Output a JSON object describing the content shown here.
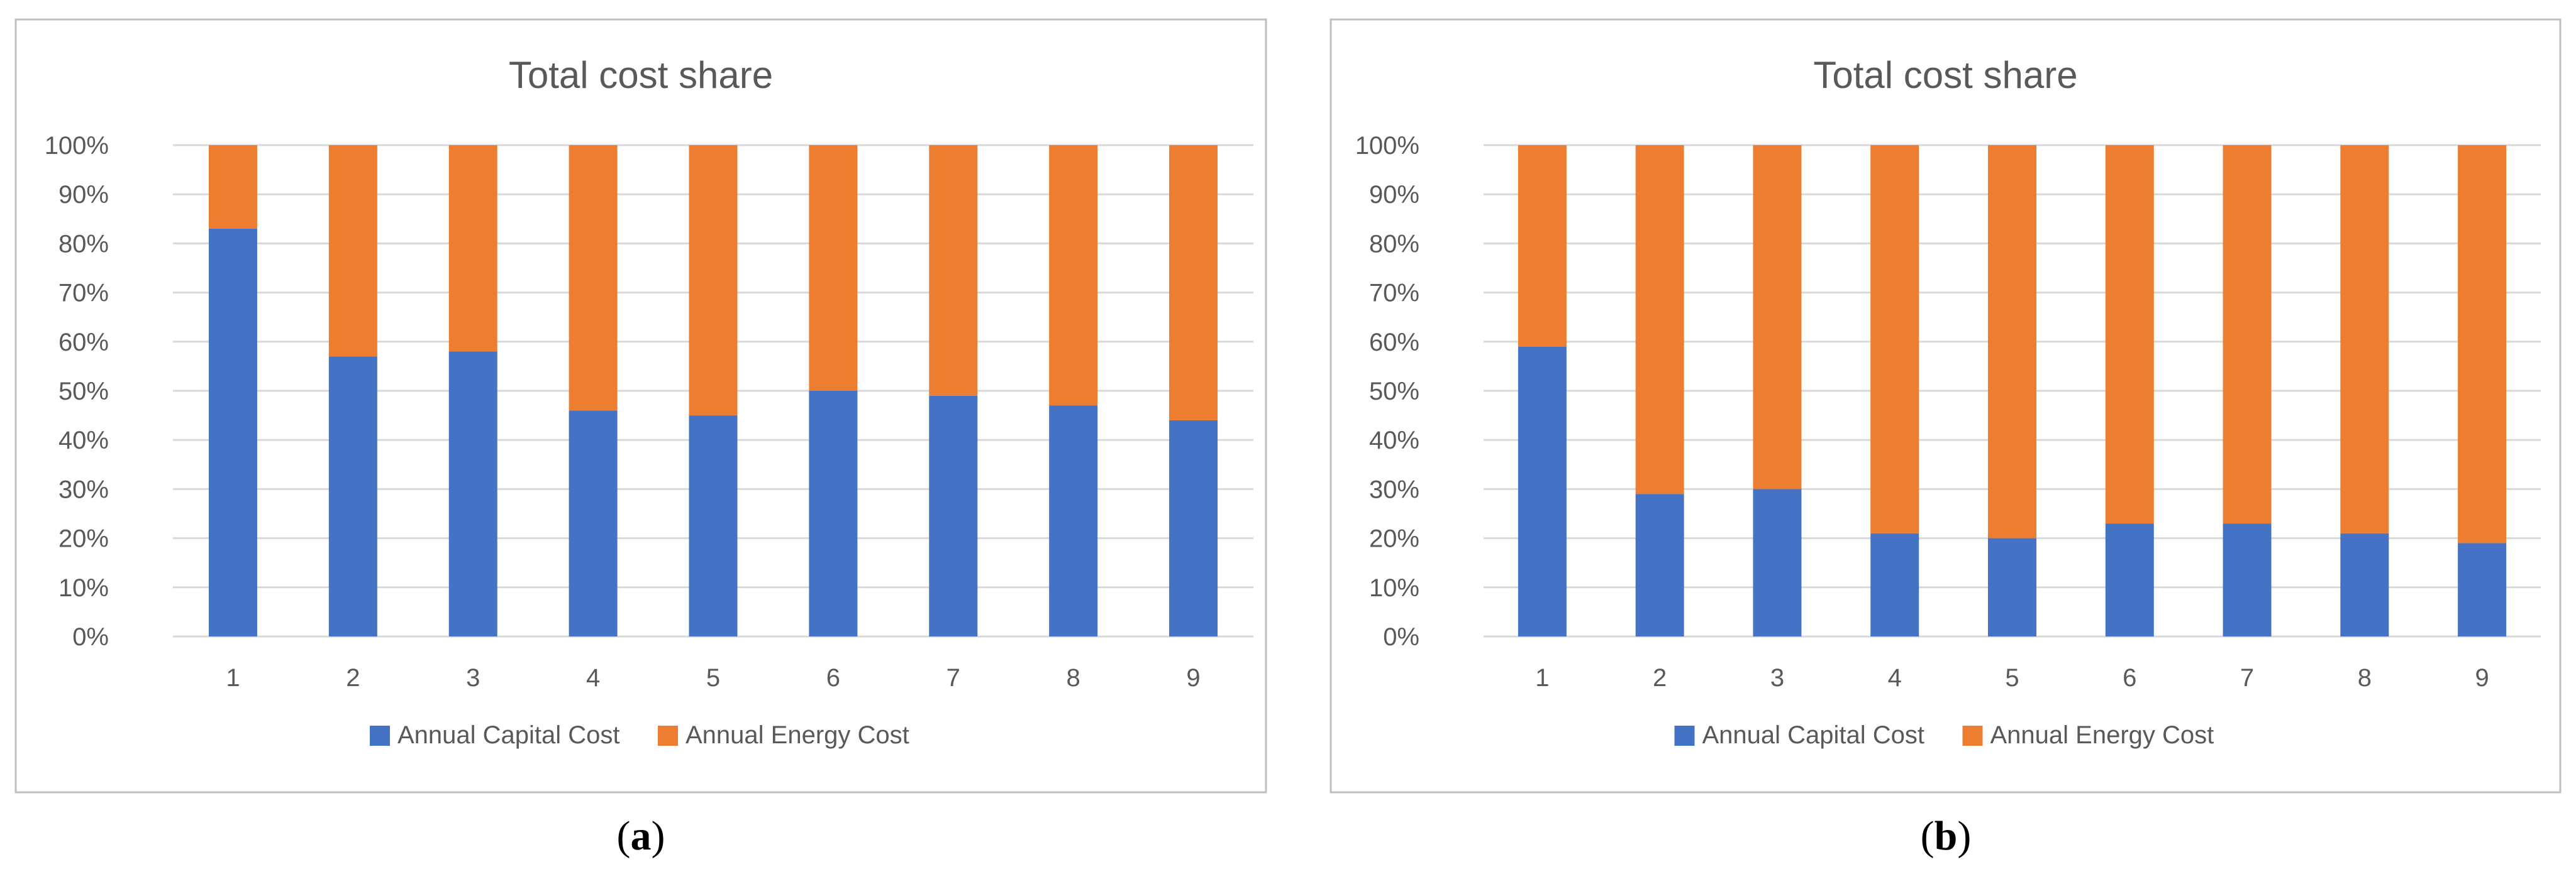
{
  "charts": [
    {
      "caption": "(a)",
      "caption_parts": [
        "(",
        "a",
        ")"
      ]
    },
    {
      "caption": "(b)",
      "caption_parts": [
        "(",
        "b",
        ")"
      ]
    }
  ],
  "chart_data": [
    {
      "type": "bar",
      "stacked": true,
      "percent_stacked": true,
      "title": "Total cost share",
      "categories": [
        "1",
        "2",
        "3",
        "4",
        "5",
        "6",
        "7",
        "8",
        "9"
      ],
      "series": [
        {
          "name": "Annual Capital Cost",
          "values": [
            83,
            57,
            58,
            46,
            45,
            50,
            49,
            47,
            44
          ]
        },
        {
          "name": "Annual Energy Cost",
          "values": [
            17,
            43,
            42,
            54,
            55,
            50,
            51,
            53,
            56
          ]
        }
      ],
      "y_ticks": [
        "0%",
        "10%",
        "20%",
        "30%",
        "40%",
        "50%",
        "60%",
        "70%",
        "80%",
        "90%",
        "100%"
      ],
      "ylim": [
        0,
        100
      ],
      "xlabel": "",
      "ylabel": "",
      "grid": true,
      "legend": "bottom"
    },
    {
      "type": "bar",
      "stacked": true,
      "percent_stacked": true,
      "title": "Total cost share",
      "categories": [
        "1",
        "2",
        "3",
        "4",
        "5",
        "6",
        "7",
        "8",
        "9"
      ],
      "series": [
        {
          "name": "Annual Capital Cost",
          "values": [
            59,
            29,
            30,
            21,
            20,
            23,
            23,
            21,
            19
          ]
        },
        {
          "name": "Annual Energy Cost",
          "values": [
            41,
            71,
            70,
            79,
            80,
            77,
            77,
            79,
            81
          ]
        }
      ],
      "y_ticks": [
        "0%",
        "10%",
        "20%",
        "30%",
        "40%",
        "50%",
        "60%",
        "70%",
        "80%",
        "90%",
        "100%"
      ],
      "ylim": [
        0,
        100
      ],
      "xlabel": "",
      "ylabel": "",
      "grid": true,
      "legend": "bottom"
    }
  ],
  "colors": {
    "capital": "#4472C4",
    "energy": "#ED7D31",
    "grid": "#D9D9D9",
    "text": "#595959",
    "border": "#BFBFBF",
    "caption": "#000000"
  }
}
